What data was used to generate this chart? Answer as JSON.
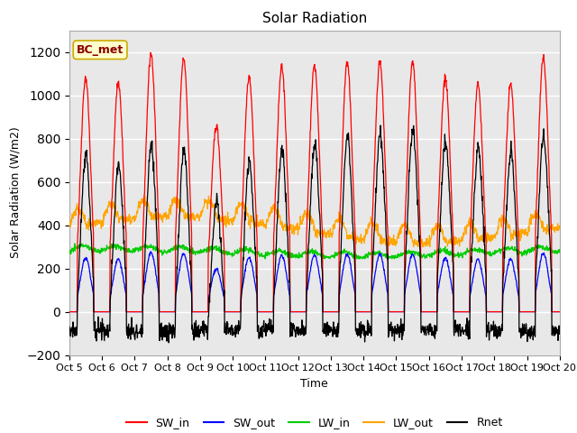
{
  "title": "Solar Radiation",
  "ylabel": "Solar Radiation (W/m2)",
  "xlabel": "Time",
  "ylim": [
    -200,
    1300
  ],
  "yticks": [
    -200,
    0,
    200,
    400,
    600,
    800,
    1000,
    1200
  ],
  "x_tick_labels": [
    "Oct 5",
    "Oct 6",
    "Oct 7",
    "Oct 8",
    "Oct 9",
    "Oct 10",
    "Oct 11",
    "Oct 12",
    "Oct 13",
    "Oct 14",
    "Oct 15",
    "Oct 16",
    "Oct 17",
    "Oct 18",
    "Oct 19",
    "Oct 20"
  ],
  "colors": {
    "SW_in": "#ff0000",
    "SW_out": "#0000ff",
    "LW_in": "#00cc00",
    "LW_out": "#ffa500",
    "Rnet": "#000000"
  },
  "annotation_text": "BC_met",
  "annotation_color": "#8b0000",
  "annotation_bg": "#ffffcc",
  "plot_bg_color": "#e8e8e8",
  "title_fontsize": 11,
  "axis_fontsize": 9,
  "legend_fontsize": 9
}
